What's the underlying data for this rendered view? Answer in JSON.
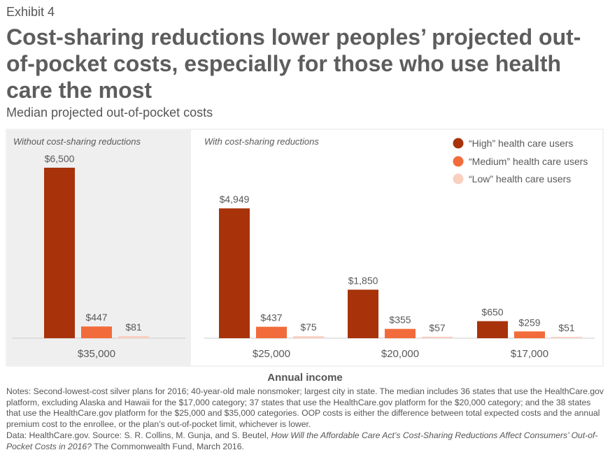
{
  "exhibit": "Exhibit 4",
  "title": "Cost-sharing reductions lower peoples’ projected out-of-pocket costs, especially for those who use health care the most",
  "subtitle": "Median projected out-of-pocket costs",
  "colors": {
    "high": "#a8320a",
    "medium": "#f26b3a",
    "low": "#f9cfc0",
    "panel_bg": "#efefef",
    "axis": "#cccccc"
  },
  "chart_data": {
    "type": "bar",
    "panels": [
      {
        "label": "Without cost-sharing reductions",
        "categories": [
          "$35,000"
        ]
      },
      {
        "label": "With cost-sharing reductions",
        "categories": [
          "$25,000",
          "$20,000",
          "$17,000"
        ]
      }
    ],
    "categories": [
      "$35,000",
      "$25,000",
      "$20,000",
      "$17,000"
    ],
    "series": [
      {
        "name": "“High” health care users",
        "values": [
          6500,
          4949,
          1850,
          650
        ],
        "labels": [
          "$6,500",
          "$4,949",
          "$1,850",
          "$650"
        ]
      },
      {
        "name": "“Medium” health care users",
        "values": [
          447,
          437,
          355,
          259
        ],
        "labels": [
          "$447",
          "$437",
          "$355",
          "$259"
        ]
      },
      {
        "name": "“Low” health care users",
        "values": [
          81,
          75,
          57,
          51
        ],
        "labels": [
          "$81",
          "$75",
          "$57",
          "$51"
        ]
      }
    ],
    "xlabel": "Annual income",
    "ylabel": "",
    "ylim": [
      0,
      6500
    ],
    "legend_position": "top-right"
  },
  "notes": "Notes: Second-lowest-cost silver plans for 2016; 40-year-old male nonsmoker; largest city in state. The median includes 36 states that use the HealthCare.gov platform, excluding Alaska and Hawaii for the $17,000 category; 37 states that use the HealthCare.gov platform for the $20,000 category; and the 38 states that use the HealthCare.gov platform for the $25,000 and $35,000 categories. OOP costs is either the difference between total expected costs and the annual premium cost to the enrollee, or the plan’s out-of-pocket limit, whichever is lower.",
  "source_prefix": "Data: HealthCare.gov. Source: S. R. Collins, M. Gunja, and S. Beutel, ",
  "source_title": "How Will the Affordable Care Act’s Cost-Sharing Reductions Affect Consumers’ Out-of-Pocket Costs in 2016?",
  "source_suffix": " The Commonwealth Fund, March 2016."
}
